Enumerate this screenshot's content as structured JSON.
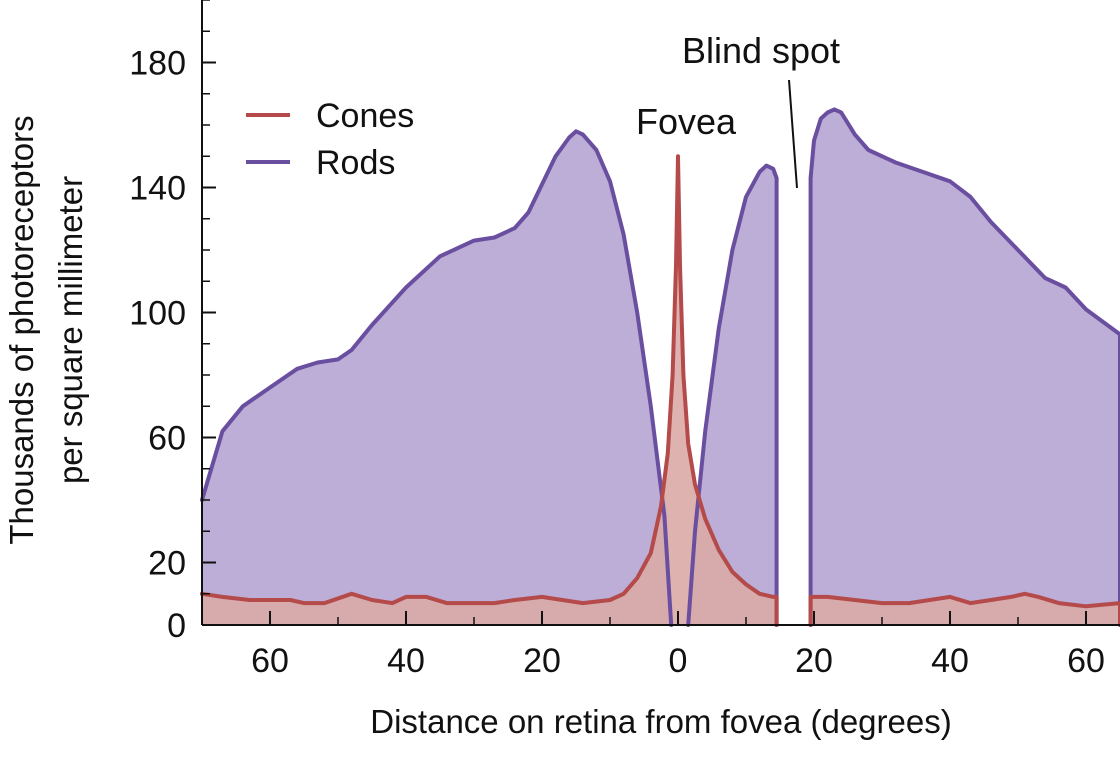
{
  "chart_data": {
    "type": "area",
    "title": "",
    "xlabel": "Distance on retina from fovea (degrees)",
    "ylabel_lines": [
      "Thousands of photoreceptors",
      "per square millimeter"
    ],
    "x_side_signed": true,
    "xlim": [
      -70,
      65
    ],
    "ylim": [
      0,
      200
    ],
    "x_ticks": [
      {
        "value": -60,
        "label": "60"
      },
      {
        "value": -40,
        "label": "40"
      },
      {
        "value": -20,
        "label": "20"
      },
      {
        "value": 0,
        "label": "0"
      },
      {
        "value": 20,
        "label": "20"
      },
      {
        "value": 40,
        "label": "40"
      },
      {
        "value": 60,
        "label": "60"
      }
    ],
    "y_ticks": [
      {
        "value": 0,
        "label": "0"
      },
      {
        "value": 20,
        "label": "20"
      },
      {
        "value": 60,
        "label": "60"
      },
      {
        "value": 100,
        "label": "100"
      },
      {
        "value": 140,
        "label": "140"
      },
      {
        "value": 180,
        "label": "180"
      }
    ],
    "legend": {
      "position": "top-left"
    },
    "series": [
      {
        "name": "Rods",
        "line_color": "#6a4fa0",
        "fill_color": "#bcaed6",
        "segments": [
          [
            [
              -70,
              40
            ],
            [
              -67,
              62
            ],
            [
              -64,
              70
            ],
            [
              -60,
              76
            ],
            [
              -56,
              82
            ],
            [
              -53,
              84
            ],
            [
              -50,
              85
            ],
            [
              -48,
              88
            ],
            [
              -45,
              96
            ],
            [
              -40,
              108
            ],
            [
              -35,
              118
            ],
            [
              -30,
              123
            ],
            [
              -27,
              124
            ],
            [
              -24,
              127
            ],
            [
              -22,
              132
            ],
            [
              -20,
              141
            ],
            [
              -18,
              150
            ],
            [
              -16,
              156
            ],
            [
              -15,
              158
            ],
            [
              -14,
              157
            ],
            [
              -12,
              152
            ],
            [
              -10,
              142
            ],
            [
              -8,
              125
            ],
            [
              -6,
              100
            ],
            [
              -4,
              70
            ],
            [
              -2,
              35
            ],
            [
              -1,
              0
            ]
          ],
          [
            [
              1.5,
              0
            ],
            [
              2.5,
              30
            ],
            [
              4,
              62
            ],
            [
              6,
              95
            ],
            [
              8,
              120
            ],
            [
              10,
              137
            ],
            [
              12,
              145
            ],
            [
              13,
              147
            ],
            [
              14,
              146
            ],
            [
              14.5,
              143
            ],
            [
              14.5,
              0
            ]
          ],
          [
            [
              19.5,
              0
            ],
            [
              19.5,
              143
            ],
            [
              20,
              155
            ],
            [
              21,
              162
            ],
            [
              22,
              164
            ],
            [
              23,
              165
            ],
            [
              24,
              164
            ],
            [
              26,
              157
            ],
            [
              28,
              152
            ],
            [
              32,
              148
            ],
            [
              36,
              145
            ],
            [
              40,
              142
            ],
            [
              43,
              137
            ],
            [
              46,
              129
            ],
            [
              50,
              120
            ],
            [
              54,
              111
            ],
            [
              57,
              108
            ],
            [
              60,
              101
            ],
            [
              65,
              93
            ],
            [
              65,
              0
            ]
          ]
        ]
      },
      {
        "name": "Cones",
        "line_color": "#b54a4a",
        "fill_color": "#d9aaa6",
        "segments": [
          [
            [
              -70,
              10
            ],
            [
              -67,
              9
            ],
            [
              -63,
              8
            ],
            [
              -59,
              8
            ],
            [
              -57,
              8
            ],
            [
              -55,
              7
            ],
            [
              -52,
              7
            ],
            [
              -48,
              10
            ],
            [
              -45,
              8
            ],
            [
              -42,
              7
            ],
            [
              -40,
              9
            ],
            [
              -37,
              9
            ],
            [
              -34,
              7
            ],
            [
              -30,
              7
            ],
            [
              -27,
              7
            ],
            [
              -24,
              8
            ],
            [
              -20,
              9
            ],
            [
              -17,
              8
            ],
            [
              -14,
              7
            ],
            [
              -10,
              8
            ],
            [
              -8,
              10
            ],
            [
              -6,
              15
            ],
            [
              -4,
              23
            ],
            [
              -2.5,
              38
            ],
            [
              -1.5,
              55
            ],
            [
              -0.8,
              80
            ],
            [
              -0.3,
              115
            ],
            [
              0,
              150
            ],
            [
              0.3,
              115
            ],
            [
              0.8,
              80
            ],
            [
              1.5,
              58
            ],
            [
              2.5,
              45
            ],
            [
              4,
              34
            ],
            [
              6,
              24
            ],
            [
              8,
              17
            ],
            [
              10,
              13
            ],
            [
              12,
              10
            ],
            [
              14,
              9
            ],
            [
              14.5,
              9
            ],
            [
              14.5,
              0
            ]
          ],
          [
            [
              19.5,
              0
            ],
            [
              19.5,
              9
            ],
            [
              22,
              9
            ],
            [
              26,
              8
            ],
            [
              30,
              7
            ],
            [
              34,
              7
            ],
            [
              37,
              8
            ],
            [
              40,
              9
            ],
            [
              43,
              7
            ],
            [
              46,
              8
            ],
            [
              49,
              9
            ],
            [
              51,
              10
            ],
            [
              53,
              9
            ],
            [
              56,
              7
            ],
            [
              60,
              6
            ],
            [
              65,
              7
            ],
            [
              65,
              0
            ]
          ]
        ]
      }
    ],
    "annotations": [
      {
        "text": "Fovea",
        "x": 1,
        "y": 165
      },
      {
        "text": "Blind spot",
        "x": 17,
        "y": 185
      }
    ]
  }
}
